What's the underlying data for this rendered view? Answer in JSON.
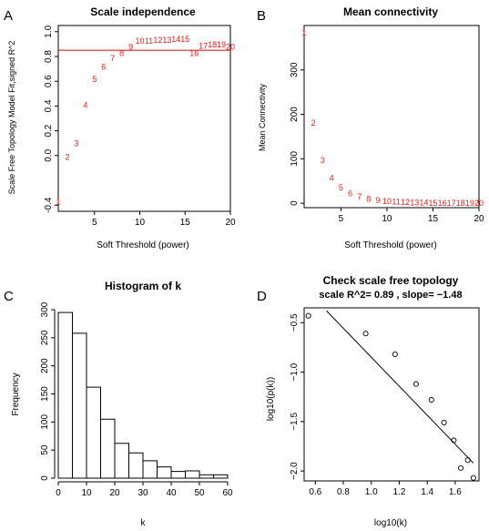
{
  "chart_data": [
    {
      "panel_letter": "A",
      "type": "scatter",
      "title": "Scale independence",
      "xlabel": "Soft Threshold (power)",
      "ylabel": "Scale Free Topology Model Fit,signed R^2",
      "xlim": [
        1,
        20
      ],
      "ylim": [
        -0.45,
        1.05
      ],
      "xticks": [
        5,
        10,
        15,
        20
      ],
      "yticks": [
        -0.4,
        0.0,
        0.2,
        0.4,
        0.6,
        0.8,
        1.0
      ],
      "ytick_labels": [
        "-0.4",
        "0.0",
        "0.2",
        "0.4",
        "0.6",
        "0.8",
        "1.0"
      ],
      "hline": 0.85,
      "marker": "text-labels",
      "points": [
        {
          "x": 1,
          "y": -0.37,
          "label": "1"
        },
        {
          "x": 2,
          "y": -0.01,
          "label": "2"
        },
        {
          "x": 3,
          "y": 0.1,
          "label": "3"
        },
        {
          "x": 4,
          "y": 0.41,
          "label": "4"
        },
        {
          "x": 5,
          "y": 0.62,
          "label": "5"
        },
        {
          "x": 6,
          "y": 0.72,
          "label": "6"
        },
        {
          "x": 7,
          "y": 0.79,
          "label": "7"
        },
        {
          "x": 8,
          "y": 0.83,
          "label": "8"
        },
        {
          "x": 9,
          "y": 0.88,
          "label": "9"
        },
        {
          "x": 10,
          "y": 0.93,
          "label": "10"
        },
        {
          "x": 11,
          "y": 0.93,
          "label": "11"
        },
        {
          "x": 12,
          "y": 0.935,
          "label": "12"
        },
        {
          "x": 13,
          "y": 0.935,
          "label": "13"
        },
        {
          "x": 14,
          "y": 0.945,
          "label": "14"
        },
        {
          "x": 15,
          "y": 0.945,
          "label": "15"
        },
        {
          "x": 16,
          "y": 0.83,
          "label": "16"
        },
        {
          "x": 17,
          "y": 0.89,
          "label": "17"
        },
        {
          "x": 18,
          "y": 0.9,
          "label": "18"
        },
        {
          "x": 19,
          "y": 0.9,
          "label": "19"
        },
        {
          "x": 20,
          "y": 0.88,
          "label": "20"
        }
      ]
    },
    {
      "panel_letter": "B",
      "type": "scatter",
      "title": "Mean connectivity",
      "xlabel": "Soft Threshold (power)",
      "ylabel": "Mean Connectivity",
      "xlim": [
        1,
        20
      ],
      "ylim": [
        -10,
        400
      ],
      "xticks": [
        5,
        10,
        15,
        20
      ],
      "yticks": [
        0,
        100,
        200,
        300
      ],
      "ytick_labels": [
        "0",
        "100",
        "200",
        "300"
      ],
      "marker": "text-labels",
      "points": [
        {
          "x": 1,
          "y": 385,
          "label": "1"
        },
        {
          "x": 2,
          "y": 182,
          "label": "2"
        },
        {
          "x": 3,
          "y": 98,
          "label": "3"
        },
        {
          "x": 4,
          "y": 58,
          "label": "4"
        },
        {
          "x": 5,
          "y": 36,
          "label": "5"
        },
        {
          "x": 6,
          "y": 23,
          "label": "6"
        },
        {
          "x": 7,
          "y": 16,
          "label": "7"
        },
        {
          "x": 8,
          "y": 11,
          "label": "8"
        },
        {
          "x": 9,
          "y": 7,
          "label": "9"
        },
        {
          "x": 10,
          "y": 5,
          "label": "10"
        },
        {
          "x": 11,
          "y": 4,
          "label": "11"
        },
        {
          "x": 12,
          "y": 3,
          "label": "12"
        },
        {
          "x": 13,
          "y": 2,
          "label": "13"
        },
        {
          "x": 14,
          "y": 2,
          "label": "14"
        },
        {
          "x": 15,
          "y": 1,
          "label": "15"
        },
        {
          "x": 16,
          "y": 1,
          "label": "16"
        },
        {
          "x": 17,
          "y": 1,
          "label": "17"
        },
        {
          "x": 18,
          "y": 1,
          "label": "18"
        },
        {
          "x": 19,
          "y": 1,
          "label": "19"
        },
        {
          "x": 20,
          "y": 1,
          "label": "20"
        }
      ]
    },
    {
      "panel_letter": "C",
      "type": "bar",
      "title": "Histogram of k",
      "xlabel": "k",
      "ylabel": "Frequency",
      "xlim": [
        0,
        60
      ],
      "ylim": [
        0,
        300
      ],
      "xticks": [
        0,
        10,
        20,
        30,
        40,
        50,
        60
      ],
      "yticks": [
        0,
        50,
        100,
        150,
        200,
        250,
        300
      ],
      "ytick_labels": [
        "0",
        "50",
        "100",
        "150",
        "200",
        "250",
        "300"
      ],
      "bins": [
        {
          "from": 0,
          "to": 5,
          "count": 295
        },
        {
          "from": 5,
          "to": 10,
          "count": 258
        },
        {
          "from": 10,
          "to": 15,
          "count": 162
        },
        {
          "from": 15,
          "to": 20,
          "count": 105
        },
        {
          "from": 20,
          "to": 25,
          "count": 62
        },
        {
          "from": 25,
          "to": 30,
          "count": 45
        },
        {
          "from": 30,
          "to": 35,
          "count": 31
        },
        {
          "from": 35,
          "to": 40,
          "count": 20
        },
        {
          "from": 40,
          "to": 45,
          "count": 12
        },
        {
          "from": 45,
          "to": 50,
          "count": 13
        },
        {
          "from": 50,
          "to": 55,
          "count": 6
        },
        {
          "from": 55,
          "to": 60,
          "count": 6
        }
      ]
    },
    {
      "panel_letter": "D",
      "type": "scatter",
      "title": "Check scale free topology",
      "subtitle": "scale R^2= 0.89 , slope= −1.48",
      "xlabel": "log10(k)",
      "ylabel": "log10(p(k))",
      "xlim": [
        0.52,
        1.77
      ],
      "ylim": [
        -2.1,
        -0.35
      ],
      "xticks": [
        0.6,
        0.8,
        1.0,
        1.2,
        1.4,
        1.6
      ],
      "xtick_labels": [
        "0.6",
        "0.8",
        "1.0",
        "1.2",
        "1.4",
        "1.6"
      ],
      "yticks": [
        -2.0,
        -1.5,
        -1.0,
        -0.5
      ],
      "ytick_labels": [
        "−2.0",
        "−1.5",
        "−1.0",
        "−0.5"
      ],
      "marker": "open-circle",
      "points": [
        {
          "x": 0.55,
          "y": -0.43
        },
        {
          "x": 0.96,
          "y": -0.61
        },
        {
          "x": 1.17,
          "y": -0.82
        },
        {
          "x": 1.32,
          "y": -1.12
        },
        {
          "x": 1.43,
          "y": -1.28
        },
        {
          "x": 1.52,
          "y": -1.51
        },
        {
          "x": 1.59,
          "y": -1.69
        },
        {
          "x": 1.64,
          "y": -1.97
        },
        {
          "x": 1.69,
          "y": -1.89
        },
        {
          "x": 1.73,
          "y": -2.07
        }
      ],
      "fit_line": {
        "x1": 0.68,
        "y1": -0.38,
        "x2": 1.73,
        "y2": -1.92
      }
    }
  ],
  "colors": {
    "label_red": "#e8221c",
    "hline_red": "#e8221c",
    "axis": "#000000",
    "bar_fill": "#ffffff"
  }
}
